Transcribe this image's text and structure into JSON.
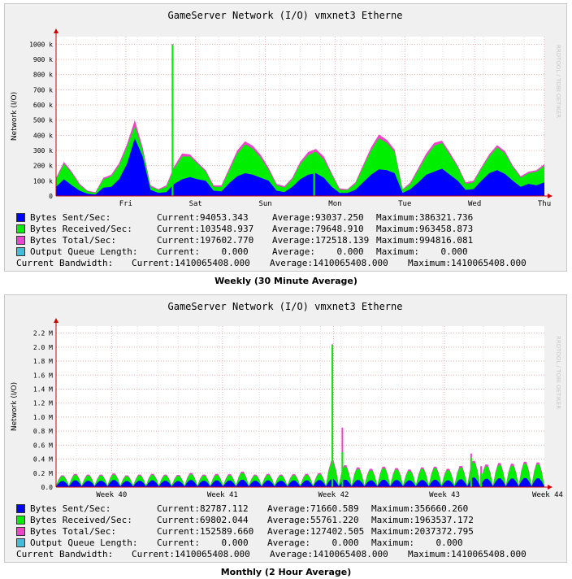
{
  "chart_data": [
    {
      "type": "area",
      "title": "GameServer Network (I/O) vmxnet3 Etherne",
      "ylabel": "Network (I/O)",
      "caption": "Weekly (30 Minute Average)",
      "watermark": "RRDTOOL / TOBI OETIKER",
      "ylim": [
        0,
        1050000
      ],
      "yticks": [
        0,
        100000,
        200000,
        300000,
        400000,
        500000,
        600000,
        700000,
        800000,
        900000,
        1000000
      ],
      "ytick_labels": [
        "0",
        "100 k",
        "200 k",
        "300 k",
        "400 k",
        "500 k",
        "600 k",
        "700 k",
        "800 k",
        "900 k",
        "1000 k"
      ],
      "xlim": [
        0,
        7
      ],
      "xticks": [
        {
          "pos": 1.0,
          "label": "Fri"
        },
        {
          "pos": 2.0,
          "label": "Sat"
        },
        {
          "pos": 3.0,
          "label": "Sun"
        },
        {
          "pos": 4.0,
          "label": "Mon"
        },
        {
          "pos": 5.0,
          "label": "Tue"
        },
        {
          "pos": 6.0,
          "label": "Wed"
        },
        {
          "pos": 7.0,
          "label": "Thu"
        }
      ],
      "colors": {
        "sent": "#0000ff",
        "received": "#00ee00",
        "total": "#ee44cc",
        "queue": "#44bbdd",
        "grid": "#e8b0b0",
        "axis": "#cc0000"
      },
      "series": [
        {
          "name": "Bytes Sent/Sec",
          "values": [
            60000,
            110000,
            70000,
            35000,
            15000,
            10000,
            55000,
            60000,
            110000,
            210000,
            380000,
            260000,
            40000,
            20000,
            25000,
            80000,
            110000,
            125000,
            110000,
            100000,
            35000,
            30000,
            85000,
            130000,
            150000,
            140000,
            120000,
            100000,
            35000,
            25000,
            60000,
            110000,
            140000,
            150000,
            120000,
            60000,
            20000,
            20000,
            40000,
            90000,
            140000,
            175000,
            170000,
            150000,
            20000,
            45000,
            90000,
            140000,
            160000,
            180000,
            140000,
            100000,
            40000,
            45000,
            100000,
            150000,
            170000,
            145000,
            100000,
            60000,
            80000,
            70000,
            90000
          ]
        },
        {
          "name": "Bytes Received/Sec",
          "values": [
            110000,
            210000,
            150000,
            70000,
            30000,
            20000,
            110000,
            130000,
            200000,
            320000,
            460000,
            300000,
            60000,
            40000,
            60000,
            180000,
            260000,
            260000,
            210000,
            160000,
            60000,
            60000,
            170000,
            280000,
            340000,
            310000,
            250000,
            170000,
            70000,
            55000,
            110000,
            210000,
            270000,
            290000,
            240000,
            140000,
            40000,
            40000,
            80000,
            190000,
            300000,
            380000,
            350000,
            290000,
            40000,
            80000,
            170000,
            260000,
            330000,
            350000,
            270000,
            190000,
            80000,
            90000,
            180000,
            260000,
            320000,
            280000,
            190000,
            120000,
            150000,
            160000,
            200000
          ]
        },
        {
          "name": "Bytes Total/Sec",
          "values": [
            120000,
            225000,
            160000,
            80000,
            35000,
            25000,
            120000,
            140000,
            215000,
            340000,
            500000,
            320000,
            70000,
            45000,
            70000,
            195000,
            280000,
            275000,
            220000,
            170000,
            70000,
            70000,
            185000,
            300000,
            360000,
            330000,
            270000,
            185000,
            80000,
            65000,
            120000,
            225000,
            290000,
            310000,
            260000,
            150000,
            50000,
            45000,
            90000,
            205000,
            320000,
            405000,
            370000,
            305000,
            45000,
            90000,
            185000,
            280000,
            350000,
            365000,
            285000,
            200000,
            90000,
            100000,
            190000,
            275000,
            335000,
            295000,
            200000,
            130000,
            160000,
            170000,
            210000
          ]
        },
        {
          "name": "Output Queue Length",
          "values": []
        }
      ],
      "spikes": [
        {
          "x": 1.67,
          "total": 1000000,
          "received": 995000
        },
        {
          "x": 3.7,
          "total": 300000,
          "received": 290000
        }
      ],
      "legend": [
        {
          "key": "sent",
          "label": "Bytes Sent/Sec:",
          "current": "Current:94053.343",
          "average": "Average:93037.250",
          "maximum": "Maximum:386321.736"
        },
        {
          "key": "received",
          "label": "Bytes Received/Sec:",
          "current": "Current:103548.937",
          "average": "Average:79648.910",
          "maximum": "Maximum:963458.873"
        },
        {
          "key": "total",
          "label": "Bytes Total/Sec:",
          "current": "Current:197602.770",
          "average": "Average:172518.139",
          "maximum": "Maximum:994816.081"
        },
        {
          "key": "queue",
          "label": "Output Queue Length:",
          "current": "Current:    0.000",
          "average": "Average:    0.000",
          "maximum": "Maximum:    0.000"
        }
      ],
      "bandwidth": {
        "label": "Current Bandwidth:",
        "current": "Current:1410065408.000",
        "average": "Average:1410065408.000",
        "maximum": "Maximum:1410065408.000"
      }
    },
    {
      "type": "area",
      "title": "GameServer Network (I/O) vmxnet3 Etherne",
      "ylabel": "Network (I/O)",
      "caption": "Monthly (2 Hour Average)",
      "watermark": "RRDTOOL / TOBI OETIKER",
      "ylim": [
        0,
        2300000
      ],
      "yticks": [
        0,
        200000,
        400000,
        600000,
        800000,
        1000000,
        1200000,
        1400000,
        1600000,
        1800000,
        2000000,
        2200000
      ],
      "ytick_labels": [
        "0.0",
        "0.2 M",
        "0.4 M",
        "0.6 M",
        "0.8 M",
        "1.0 M",
        "1.2 M",
        "1.4 M",
        "1.6 M",
        "1.8 M",
        "2.0 M",
        "2.2 M"
      ],
      "xlim": [
        0,
        4.4
      ],
      "xticks": [
        {
          "pos": 0.5,
          "label": "Week 40"
        },
        {
          "pos": 1.5,
          "label": "Week 41"
        },
        {
          "pos": 2.5,
          "label": "Week 42"
        },
        {
          "pos": 3.5,
          "label": "Week 43"
        },
        {
          "pos": 4.5,
          "label": "Week 44"
        }
      ],
      "colors": {
        "sent": "#0000ff",
        "received": "#00ee00",
        "total": "#ee44cc",
        "queue": "#44bbdd",
        "grid": "#e8b0b0",
        "axis": "#cc0000"
      },
      "daily_received_peaks": [
        140000,
        160000,
        150000,
        150000,
        165000,
        140000,
        150000,
        160000,
        150000,
        145000,
        170000,
        150000,
        160000,
        155000,
        190000,
        150000,
        160000,
        150000,
        155000,
        160000,
        170000,
        340000,
        280000,
        250000,
        230000,
        260000,
        240000,
        220000,
        250000,
        260000,
        230000,
        270000,
        340000,
        290000,
        310000,
        300000,
        330000,
        320000
      ],
      "daily_sent_peaks": [
        80000,
        90000,
        85000,
        85000,
        95000,
        80000,
        85000,
        90000,
        85000,
        80000,
        95000,
        85000,
        90000,
        88000,
        100000,
        85000,
        90000,
        85000,
        88000,
        90000,
        95000,
        110000,
        100000,
        95000,
        90000,
        100000,
        95000,
        90000,
        95000,
        100000,
        90000,
        105000,
        130000,
        115000,
        120000,
        118000,
        125000,
        120000
      ],
      "spikes": [
        {
          "x": 2.49,
          "total": 2040000,
          "received": 2030000
        },
        {
          "x": 2.58,
          "total": 850000,
          "received": 500000
        },
        {
          "x": 3.74,
          "total": 480000,
          "received": 420000
        },
        {
          "x": 3.83,
          "total": 300000,
          "received": 200000
        }
      ],
      "legend": [
        {
          "key": "sent",
          "label": "Bytes Sent/Sec:",
          "current": "Current:82787.112",
          "average": "Average:71660.589",
          "maximum": "Maximum:356660.260"
        },
        {
          "key": "received",
          "label": "Bytes Received/Sec:",
          "current": "Current:69802.044",
          "average": "Average:55761.220",
          "maximum": "Maximum:1963537.172"
        },
        {
          "key": "total",
          "label": "Bytes Total/Sec:",
          "current": "Current:152589.660",
          "average": "Average:127402.505",
          "maximum": "Maximum:2037372.795"
        },
        {
          "key": "queue",
          "label": "Output Queue Length:",
          "current": "Current:    0.000",
          "average": "Average:    0.000",
          "maximum": "Maximum:    0.000"
        }
      ],
      "bandwidth": {
        "label": "Current Bandwidth:",
        "current": "Current:1410065408.000",
        "average": "Average:1410065408.000",
        "maximum": "Maximum:1410065408.000"
      }
    }
  ]
}
